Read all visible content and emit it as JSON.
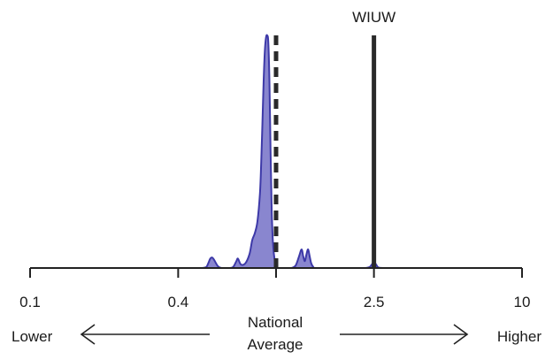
{
  "chart_data": {
    "type": "area",
    "title": "",
    "xlabel": "",
    "ylabel": "",
    "x_scale": "log",
    "xlim": [
      0.1,
      10
    ],
    "tick_values": [
      0.1,
      0.4,
      1,
      2.5,
      10
    ],
    "tick_labels": [
      "0.1",
      "0.4",
      "",
      "2.5",
      "10"
    ],
    "national_average": 1,
    "station": {
      "label": "WIUW",
      "value": 2.5
    },
    "left_label": "Lower",
    "right_label": "Higher",
    "center_label": [
      "National",
      "Average"
    ],
    "density": {
      "x": [
        0.5,
        0.52,
        0.53,
        0.54,
        0.55,
        0.56,
        0.58,
        0.6,
        0.62,
        0.65,
        0.67,
        0.69,
        0.7,
        0.72,
        0.75,
        0.78,
        0.8,
        0.82,
        0.84,
        0.86,
        0.87,
        0.88,
        0.89,
        0.9,
        0.91,
        0.92,
        0.93,
        0.94,
        0.95,
        0.96,
        0.97,
        0.98,
        0.99,
        1.0,
        1.01,
        1.02,
        1.04,
        1.06,
        1.1,
        1.15,
        1.2,
        1.24,
        1.27,
        1.29,
        1.31,
        1.33,
        1.35,
        1.37,
        1.39,
        1.42,
        1.45,
        2.0,
        2.3,
        2.4,
        2.45,
        2.5,
        2.55,
        2.6,
        2.7
      ],
      "y": [
        0,
        0.004,
        0.02,
        0.04,
        0.045,
        0.035,
        0.008,
        0,
        0,
        0,
        0.005,
        0.03,
        0.04,
        0.015,
        0.02,
        0.06,
        0.12,
        0.15,
        0.2,
        0.32,
        0.45,
        0.62,
        0.8,
        0.93,
        0.99,
        1.0,
        0.97,
        0.8,
        0.5,
        0.25,
        0.12,
        0.06,
        0.03,
        0.01,
        0.003,
        0,
        0,
        0,
        0,
        0,
        0.01,
        0.05,
        0.08,
        0.05,
        0.03,
        0.06,
        0.08,
        0.05,
        0.02,
        0.003,
        0,
        0,
        0,
        0.004,
        0.015,
        0.025,
        0.015,
        0.003,
        0
      ],
      "color": "#5c58bd",
      "edge_color": "#3d39a8"
    },
    "axis_color": "#222222"
  }
}
